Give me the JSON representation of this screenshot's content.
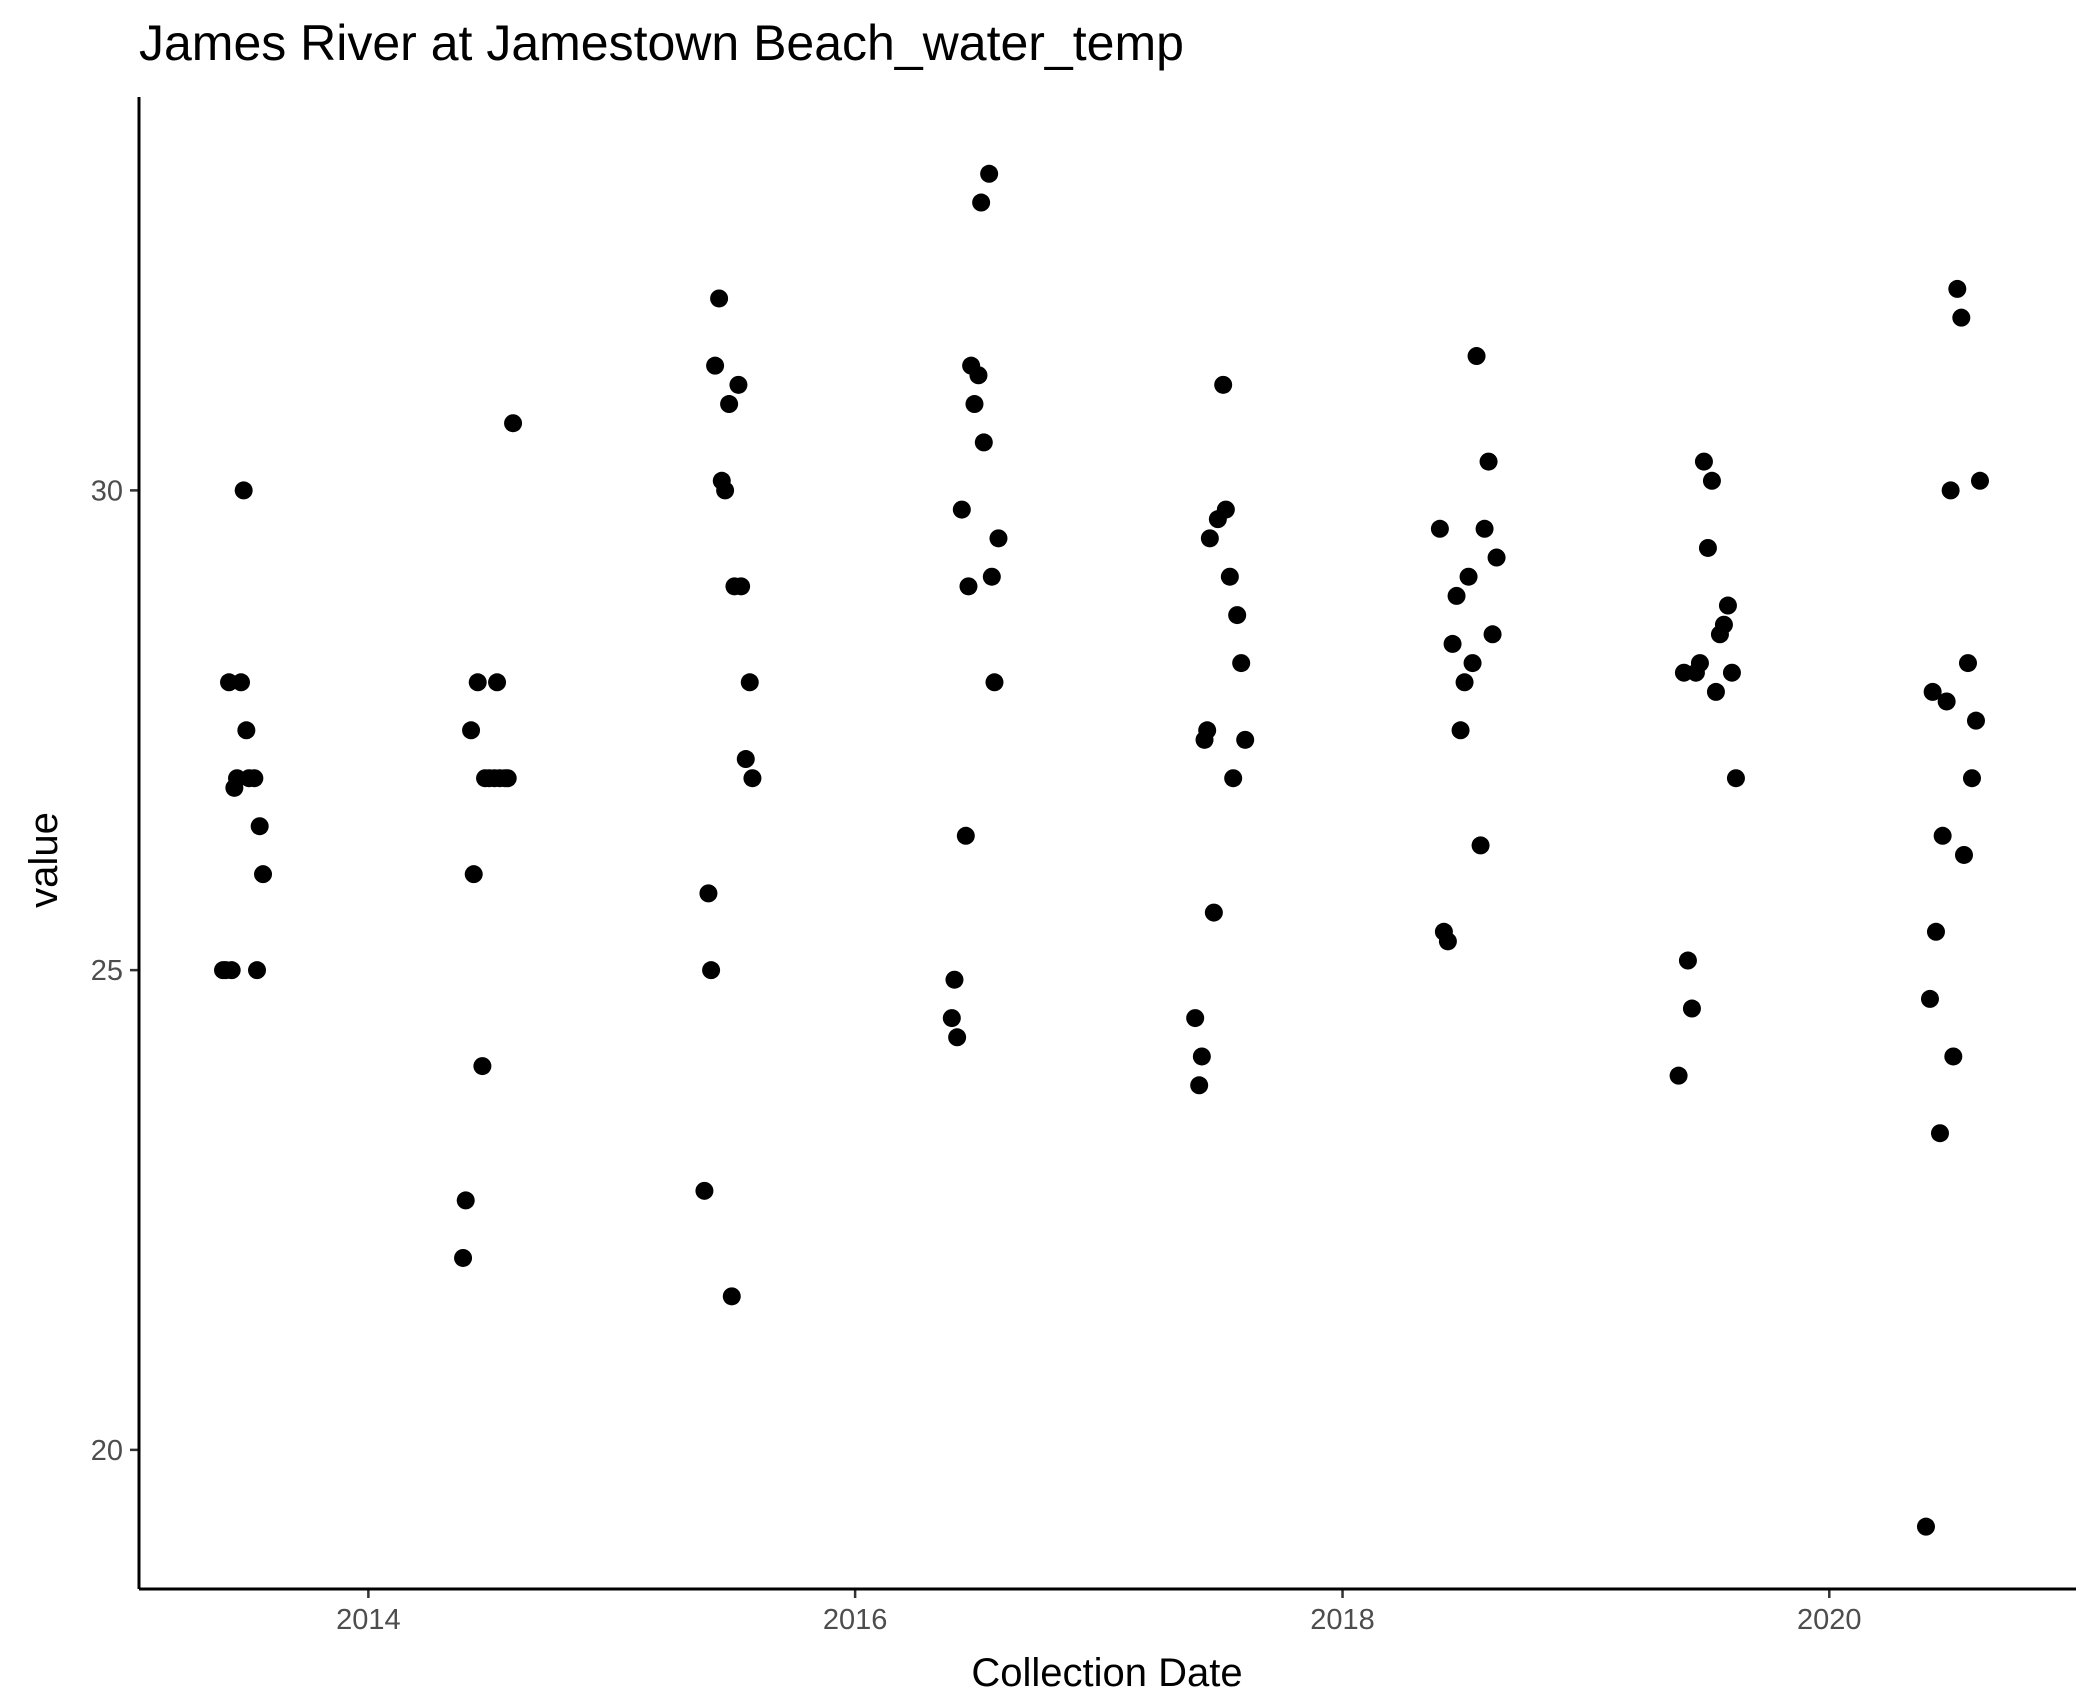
{
  "chart_data": {
    "type": "scatter",
    "title": "James River at Jamestown Beach_water_temp",
    "xlabel": "Collection Date",
    "ylabel": "value",
    "x_type": "date",
    "xlim": [
      "2013-01-22",
      "2021-01-05"
    ],
    "ylim": [
      18.55,
      34.1
    ],
    "x_ticks": [
      {
        "value": "2014-01-01",
        "label": "2014"
      },
      {
        "value": "2016-01-01",
        "label": "2016"
      },
      {
        "value": "2018-01-01",
        "label": "2018"
      },
      {
        "value": "2020-01-01",
        "label": "2020"
      }
    ],
    "y_ticks": [
      {
        "value": 20,
        "label": "20"
      },
      {
        "value": 25,
        "label": "25"
      },
      {
        "value": 30,
        "label": "30"
      }
    ],
    "grid": false,
    "legend": "none",
    "point_color": "#000000",
    "points": [
      {
        "x": "2013-05-28",
        "y": 25.0
      },
      {
        "x": "2013-06-01",
        "y": 25.0
      },
      {
        "x": "2013-06-06",
        "y": 28.0
      },
      {
        "x": "2013-06-10",
        "y": 25.0
      },
      {
        "x": "2013-06-14",
        "y": 26.9
      },
      {
        "x": "2013-06-18",
        "y": 27.0
      },
      {
        "x": "2013-06-24",
        "y": 28.0
      },
      {
        "x": "2013-06-28",
        "y": 30.0
      },
      {
        "x": "2013-07-02",
        "y": 27.5
      },
      {
        "x": "2013-07-06",
        "y": 27.0
      },
      {
        "x": "2013-07-14",
        "y": 27.0
      },
      {
        "x": "2013-07-18",
        "y": 25.0
      },
      {
        "x": "2013-07-22",
        "y": 26.5
      },
      {
        "x": "2013-07-27",
        "y": 26.0
      },
      {
        "x": "2014-05-23",
        "y": 22.0
      },
      {
        "x": "2014-05-27",
        "y": 22.6
      },
      {
        "x": "2014-06-04",
        "y": 27.5
      },
      {
        "x": "2014-06-08",
        "y": 26.0
      },
      {
        "x": "2014-06-14",
        "y": 28.0
      },
      {
        "x": "2014-06-21",
        "y": 24.0
      },
      {
        "x": "2014-06-25",
        "y": 27.0
      },
      {
        "x": "2014-07-01",
        "y": 27.0
      },
      {
        "x": "2014-07-09",
        "y": 27.0
      },
      {
        "x": "2014-07-13",
        "y": 28.0
      },
      {
        "x": "2014-07-17",
        "y": 27.0
      },
      {
        "x": "2014-07-25",
        "y": 27.0
      },
      {
        "x": "2014-07-29",
        "y": 27.0
      },
      {
        "x": "2014-08-06",
        "y": 30.7
      },
      {
        "x": "2015-05-20",
        "y": 22.7
      },
      {
        "x": "2015-05-26",
        "y": 25.8
      },
      {
        "x": "2015-05-30",
        "y": 25.0
      },
      {
        "x": "2015-06-05",
        "y": 31.3
      },
      {
        "x": "2015-06-11",
        "y": 32.0
      },
      {
        "x": "2015-06-15",
        "y": 30.1
      },
      {
        "x": "2015-06-20",
        "y": 30.0
      },
      {
        "x": "2015-06-26",
        "y": 30.9
      },
      {
        "x": "2015-06-30",
        "y": 21.6
      },
      {
        "x": "2015-07-04",
        "y": 29.0
      },
      {
        "x": "2015-07-10",
        "y": 31.1
      },
      {
        "x": "2015-07-14",
        "y": 29.0
      },
      {
        "x": "2015-07-21",
        "y": 27.2
      },
      {
        "x": "2015-07-27",
        "y": 28.0
      },
      {
        "x": "2015-07-31",
        "y": 27.0
      },
      {
        "x": "2016-05-25",
        "y": 24.5
      },
      {
        "x": "2016-05-29",
        "y": 24.9
      },
      {
        "x": "2016-06-02",
        "y": 24.3
      },
      {
        "x": "2016-06-09",
        "y": 29.8
      },
      {
        "x": "2016-06-15",
        "y": 26.4
      },
      {
        "x": "2016-06-19",
        "y": 29.0
      },
      {
        "x": "2016-06-23",
        "y": 31.3
      },
      {
        "x": "2016-06-28",
        "y": 30.9
      },
      {
        "x": "2016-07-04",
        "y": 31.2
      },
      {
        "x": "2016-07-08",
        "y": 33.0
      },
      {
        "x": "2016-07-12",
        "y": 30.5
      },
      {
        "x": "2016-07-20",
        "y": 33.3
      },
      {
        "x": "2016-07-24",
        "y": 29.1
      },
      {
        "x": "2016-07-28",
        "y": 28.0
      },
      {
        "x": "2016-08-03",
        "y": 29.5
      },
      {
        "x": "2017-05-25",
        "y": 24.5
      },
      {
        "x": "2017-05-31",
        "y": 23.8
      },
      {
        "x": "2017-06-04",
        "y": 24.1
      },
      {
        "x": "2017-06-08",
        "y": 27.4
      },
      {
        "x": "2017-06-12",
        "y": 27.5
      },
      {
        "x": "2017-06-16",
        "y": 29.5
      },
      {
        "x": "2017-06-22",
        "y": 25.6
      },
      {
        "x": "2017-06-28",
        "y": 29.7
      },
      {
        "x": "2017-07-06",
        "y": 31.1
      },
      {
        "x": "2017-07-10",
        "y": 29.8
      },
      {
        "x": "2017-07-16",
        "y": 29.1
      },
      {
        "x": "2017-07-21",
        "y": 27.0
      },
      {
        "x": "2017-07-27",
        "y": 28.7
      },
      {
        "x": "2017-08-02",
        "y": 28.2
      },
      {
        "x": "2017-08-08",
        "y": 27.4
      },
      {
        "x": "2018-05-27",
        "y": 29.6
      },
      {
        "x": "2018-06-02",
        "y": 25.4
      },
      {
        "x": "2018-06-08",
        "y": 25.3
      },
      {
        "x": "2018-06-15",
        "y": 28.4
      },
      {
        "x": "2018-06-21",
        "y": 28.9
      },
      {
        "x": "2018-06-27",
        "y": 27.5
      },
      {
        "x": "2018-07-03",
        "y": 28.0
      },
      {
        "x": "2018-07-09",
        "y": 29.1
      },
      {
        "x": "2018-07-15",
        "y": 28.2
      },
      {
        "x": "2018-07-21",
        "y": 31.4
      },
      {
        "x": "2018-07-27",
        "y": 26.3
      },
      {
        "x": "2018-08-02",
        "y": 29.6
      },
      {
        "x": "2018-08-08",
        "y": 30.3
      },
      {
        "x": "2018-08-14",
        "y": 28.5
      },
      {
        "x": "2018-08-20",
        "y": 29.3
      },
      {
        "x": "2019-05-20",
        "y": 23.9
      },
      {
        "x": "2019-05-28",
        "y": 28.1
      },
      {
        "x": "2019-06-03",
        "y": 25.1
      },
      {
        "x": "2019-06-09",
        "y": 24.6
      },
      {
        "x": "2019-06-15",
        "y": 28.1
      },
      {
        "x": "2019-06-21",
        "y": 28.2
      },
      {
        "x": "2019-06-27",
        "y": 30.3
      },
      {
        "x": "2019-07-03",
        "y": 29.4
      },
      {
        "x": "2019-07-09",
        "y": 30.1
      },
      {
        "x": "2019-07-15",
        "y": 27.9
      },
      {
        "x": "2019-07-21",
        "y": 28.5
      },
      {
        "x": "2019-07-27",
        "y": 28.6
      },
      {
        "x": "2019-08-02",
        "y": 28.8
      },
      {
        "x": "2019-08-08",
        "y": 28.1
      },
      {
        "x": "2019-08-14",
        "y": 27.0
      },
      {
        "x": "2020-05-25",
        "y": 19.2
      },
      {
        "x": "2020-05-31",
        "y": 24.7
      },
      {
        "x": "2020-06-04",
        "y": 27.9
      },
      {
        "x": "2020-06-09",
        "y": 25.4
      },
      {
        "x": "2020-06-15",
        "y": 23.3
      },
      {
        "x": "2020-06-19",
        "y": 26.4
      },
      {
        "x": "2020-06-25",
        "y": 27.8
      },
      {
        "x": "2020-07-01",
        "y": 30.0
      },
      {
        "x": "2020-07-05",
        "y": 24.1
      },
      {
        "x": "2020-07-11",
        "y": 32.1
      },
      {
        "x": "2020-07-17",
        "y": 31.8
      },
      {
        "x": "2020-07-21",
        "y": 26.2
      },
      {
        "x": "2020-07-27",
        "y": 28.2
      },
      {
        "x": "2020-08-02",
        "y": 27.0
      },
      {
        "x": "2020-08-08",
        "y": 27.6
      },
      {
        "x": "2020-08-14",
        "y": 30.1
      }
    ]
  }
}
